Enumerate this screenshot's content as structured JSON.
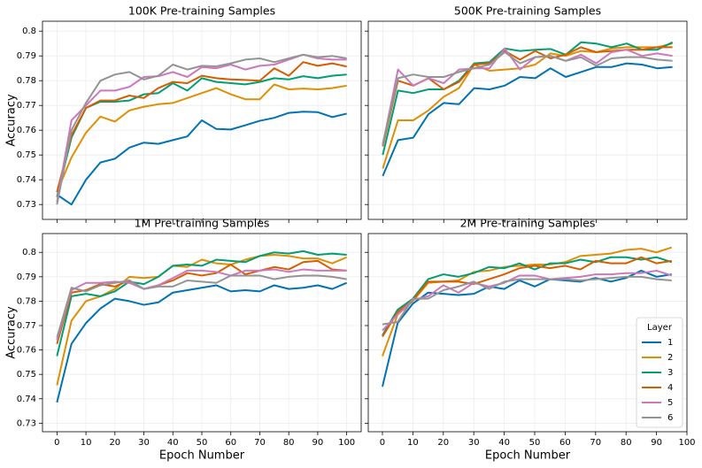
{
  "chart_data": [
    {
      "type": "line",
      "title": "100K Pre-training Samples",
      "y_label": "Accuracy",
      "x": [
        0,
        5,
        10,
        15,
        20,
        25,
        30,
        35,
        40,
        45,
        50,
        55,
        60,
        65,
        70,
        75,
        80,
        85,
        90,
        95,
        100
      ],
      "xlim": [
        -5,
        105
      ],
      "xticks": [
        0,
        10,
        20,
        30,
        40,
        50,
        60,
        70,
        80,
        90,
        100
      ],
      "ylim": [
        0.724,
        0.804
      ],
      "yticks": [
        0.73,
        0.74,
        0.75,
        0.76,
        0.77,
        0.78,
        0.79,
        0.8
      ],
      "grid": true,
      "series": [
        {
          "name": "1",
          "color": "#0173b2",
          "values": [
            0.734,
            0.73,
            0.74,
            0.747,
            0.7485,
            0.753,
            0.755,
            0.7545,
            0.756,
            0.7575,
            0.764,
            0.7605,
            0.7603,
            0.762,
            0.7638,
            0.765,
            0.767,
            0.7675,
            0.7673,
            0.7653,
            0.7667
          ]
        },
        {
          "name": "2",
          "color": "#de8f05",
          "values": [
            0.735,
            0.749,
            0.759,
            0.7655,
            0.7635,
            0.768,
            0.7695,
            0.7705,
            0.771,
            0.773,
            0.775,
            0.777,
            0.7745,
            0.7725,
            0.7725,
            0.7785,
            0.7765,
            0.7768,
            0.7765,
            0.777,
            0.778
          ]
        },
        {
          "name": "3",
          "color": "#029e73",
          "values": [
            0.733,
            0.757,
            0.769,
            0.7715,
            0.7715,
            0.772,
            0.7745,
            0.775,
            0.779,
            0.776,
            0.781,
            0.7795,
            0.779,
            0.7785,
            0.7795,
            0.781,
            0.7805,
            0.7818,
            0.781,
            0.782,
            0.7825
          ]
        },
        {
          "name": "4",
          "color": "#d55e00",
          "values": [
            0.735,
            0.758,
            0.769,
            0.772,
            0.772,
            0.774,
            0.773,
            0.777,
            0.7795,
            0.779,
            0.782,
            0.781,
            0.7805,
            0.7803,
            0.78,
            0.785,
            0.782,
            0.7875,
            0.786,
            0.787,
            0.7857
          ]
        },
        {
          "name": "5",
          "color": "#cc78bc",
          "values": [
            0.731,
            0.764,
            0.77,
            0.776,
            0.776,
            0.7775,
            0.7815,
            0.7818,
            0.7835,
            0.7815,
            0.7855,
            0.785,
            0.7865,
            0.7845,
            0.786,
            0.7865,
            0.7885,
            0.7905,
            0.789,
            0.7885,
            0.7885
          ]
        },
        {
          "name": "6",
          "color": "#949494",
          "values": [
            0.73,
            0.76,
            0.771,
            0.78,
            0.7825,
            0.7835,
            0.7805,
            0.782,
            0.7865,
            0.7845,
            0.786,
            0.7858,
            0.787,
            0.7885,
            0.789,
            0.7875,
            0.789,
            0.7905,
            0.7895,
            0.79,
            0.789
          ]
        }
      ]
    },
    {
      "type": "line",
      "title": "500K Pre-training Samples",
      "x": [
        0,
        5,
        10,
        15,
        20,
        25,
        30,
        35,
        40,
        45,
        50,
        55,
        60,
        65,
        70,
        75,
        80,
        85,
        90,
        95
      ],
      "xlim": [
        -4.75,
        99.75
      ],
      "xticks": [
        0,
        10,
        20,
        30,
        40,
        50,
        60,
        70,
        80,
        90
      ],
      "ylim": [
        0.724,
        0.804
      ],
      "yticks": [
        0.73,
        0.74,
        0.75,
        0.76,
        0.77,
        0.78,
        0.79,
        0.8
      ],
      "grid": true,
      "series": [
        {
          "name": "1",
          "color": "#0173b2",
          "values": [
            0.7415,
            0.756,
            0.757,
            0.7665,
            0.771,
            0.7705,
            0.777,
            0.7765,
            0.778,
            0.7815,
            0.781,
            0.785,
            0.7815,
            0.7835,
            0.7855,
            0.7855,
            0.787,
            0.7865,
            0.785,
            0.7855
          ]
        },
        {
          "name": "2",
          "color": "#de8f05",
          "values": [
            0.7445,
            0.764,
            0.764,
            0.768,
            0.7735,
            0.777,
            0.7865,
            0.784,
            0.7845,
            0.785,
            0.7865,
            0.791,
            0.79,
            0.792,
            0.7915,
            0.793,
            0.7935,
            0.7935,
            0.7935,
            0.795
          ]
        },
        {
          "name": "3",
          "color": "#029e73",
          "values": [
            0.75,
            0.776,
            0.775,
            0.7765,
            0.7765,
            0.78,
            0.787,
            0.7875,
            0.793,
            0.792,
            0.7925,
            0.7928,
            0.7905,
            0.7955,
            0.795,
            0.7935,
            0.795,
            0.7925,
            0.7925,
            0.7955
          ]
        },
        {
          "name": "4",
          "color": "#d55e00",
          "values": [
            0.7535,
            0.78,
            0.778,
            0.781,
            0.7765,
            0.7795,
            0.7865,
            0.787,
            0.792,
            0.7885,
            0.792,
            0.789,
            0.7905,
            0.7935,
            0.7915,
            0.792,
            0.7925,
            0.7925,
            0.7935,
            0.7935
          ]
        },
        {
          "name": "5",
          "color": "#cc78bc",
          "values": [
            0.754,
            0.7845,
            0.778,
            0.781,
            0.779,
            0.7845,
            0.785,
            0.785,
            0.793,
            0.7845,
            0.7895,
            0.79,
            0.788,
            0.7905,
            0.787,
            0.7915,
            0.7925,
            0.79,
            0.791,
            0.79
          ]
        },
        {
          "name": "6",
          "color": "#949494",
          "values": [
            0.7545,
            0.781,
            0.7825,
            0.7815,
            0.7815,
            0.7835,
            0.785,
            0.7865,
            0.7915,
            0.787,
            0.7895,
            0.79,
            0.788,
            0.7895,
            0.786,
            0.789,
            0.7895,
            0.7895,
            0.7885,
            0.788
          ]
        }
      ]
    },
    {
      "type": "line",
      "title": "1M Pre-training Samples",
      "y_label": "Accuracy",
      "x_label": "Epoch Number",
      "x": [
        0,
        5,
        10,
        15,
        20,
        25,
        30,
        35,
        40,
        45,
        50,
        55,
        60,
        65,
        70,
        75,
        80,
        85,
        90,
        95,
        100
      ],
      "xlim": [
        -5,
        105
      ],
      "xticks": [
        0,
        10,
        20,
        30,
        40,
        50,
        60,
        70,
        80,
        90,
        100
      ],
      "ylim": [
        0.7265,
        0.8077
      ],
      "yticks": [
        0.73,
        0.74,
        0.75,
        0.76,
        0.77,
        0.78,
        0.79,
        0.8
      ],
      "grid": true,
      "series": [
        {
          "name": "1",
          "color": "#0173b2",
          "values": [
            0.7385,
            0.7625,
            0.771,
            0.777,
            0.781,
            0.78,
            0.7785,
            0.7795,
            0.7835,
            0.7845,
            0.7855,
            0.7865,
            0.784,
            0.7845,
            0.784,
            0.7865,
            0.785,
            0.7855,
            0.7865,
            0.785,
            0.7875
          ]
        },
        {
          "name": "2",
          "color": "#de8f05",
          "values": [
            0.7455,
            0.772,
            0.78,
            0.782,
            0.785,
            0.79,
            0.7895,
            0.79,
            0.7945,
            0.794,
            0.797,
            0.7955,
            0.795,
            0.797,
            0.7985,
            0.799,
            0.7985,
            0.7975,
            0.7975,
            0.7955,
            0.798
          ]
        },
        {
          "name": "3",
          "color": "#029e73",
          "values": [
            0.7575,
            0.782,
            0.783,
            0.782,
            0.784,
            0.788,
            0.787,
            0.79,
            0.7945,
            0.795,
            0.7945,
            0.797,
            0.7965,
            0.796,
            0.7985,
            0.8,
            0.7995,
            0.8005,
            0.799,
            0.7995,
            0.799
          ]
        },
        {
          "name": "4",
          "color": "#d55e00",
          "values": [
            0.7625,
            0.7835,
            0.7845,
            0.787,
            0.786,
            0.7885,
            0.785,
            0.7865,
            0.7885,
            0.7915,
            0.7905,
            0.7915,
            0.795,
            0.791,
            0.7925,
            0.794,
            0.793,
            0.796,
            0.7965,
            0.793,
            0.7925
          ]
        },
        {
          "name": "5",
          "color": "#cc78bc",
          "values": [
            0.764,
            0.7845,
            0.7875,
            0.7875,
            0.788,
            0.7875,
            0.785,
            0.7865,
            0.7895,
            0.7925,
            0.7925,
            0.792,
            0.7905,
            0.7925,
            0.7925,
            0.793,
            0.792,
            0.793,
            0.7925,
            0.7925,
            0.7925
          ]
        },
        {
          "name": "6",
          "color": "#949494",
          "values": [
            0.765,
            0.7855,
            0.784,
            0.7865,
            0.7875,
            0.7885,
            0.785,
            0.786,
            0.786,
            0.7885,
            0.788,
            0.7875,
            0.7905,
            0.7905,
            0.7905,
            0.789,
            0.79,
            0.7905,
            0.7905,
            0.79,
            0.789
          ]
        }
      ]
    },
    {
      "type": "line",
      "title": "2M Pre-training Samples",
      "x_label": "Epoch Number",
      "x": [
        0,
        5,
        10,
        15,
        20,
        25,
        30,
        35,
        40,
        45,
        50,
        55,
        60,
        65,
        70,
        75,
        80,
        85,
        90,
        95
      ],
      "xlim": [
        -4.65,
        100
      ],
      "xticks": [
        0,
        10,
        20,
        30,
        40,
        50,
        60,
        70,
        80,
        90,
        100
      ],
      "ylim": [
        0.7265,
        0.8077
      ],
      "yticks": [
        0.73,
        0.74,
        0.75,
        0.76,
        0.77,
        0.78,
        0.79,
        0.8
      ],
      "grid": true,
      "legend_title": "Layer",
      "legend": "lower right",
      "series": [
        {
          "name": "1",
          "color": "#0173b2",
          "values": [
            0.745,
            0.771,
            0.779,
            0.7835,
            0.783,
            0.7825,
            0.783,
            0.786,
            0.785,
            0.7885,
            0.786,
            0.789,
            0.7885,
            0.788,
            0.7895,
            0.788,
            0.7895,
            0.7925,
            0.79,
            0.791
          ]
        },
        {
          "name": "2",
          "color": "#de8f05",
          "values": [
            0.7575,
            0.7745,
            0.78,
            0.7875,
            0.788,
            0.7885,
            0.792,
            0.7925,
            0.794,
            0.7945,
            0.795,
            0.795,
            0.796,
            0.7985,
            0.799,
            0.7995,
            0.801,
            0.8015,
            0.8,
            0.802
          ]
        },
        {
          "name": "3",
          "color": "#029e73",
          "values": [
            0.766,
            0.7765,
            0.781,
            0.789,
            0.791,
            0.79,
            0.7915,
            0.794,
            0.7935,
            0.7955,
            0.793,
            0.7955,
            0.7955,
            0.797,
            0.796,
            0.798,
            0.798,
            0.797,
            0.798,
            0.796
          ]
        },
        {
          "name": "4",
          "color": "#d55e00",
          "values": [
            0.7655,
            0.7755,
            0.7805,
            0.788,
            0.788,
            0.788,
            0.787,
            0.789,
            0.791,
            0.7935,
            0.7945,
            0.7935,
            0.7945,
            0.793,
            0.7965,
            0.7955,
            0.7955,
            0.798,
            0.7955,
            0.7965
          ]
        },
        {
          "name": "5",
          "color": "#cc78bc",
          "values": [
            0.768,
            0.7745,
            0.7805,
            0.782,
            0.7865,
            0.7835,
            0.7875,
            0.786,
            0.7875,
            0.7905,
            0.7905,
            0.789,
            0.7895,
            0.79,
            0.791,
            0.791,
            0.7915,
            0.7915,
            0.7925,
            0.7905
          ]
        },
        {
          "name": "6",
          "color": "#949494",
          "values": [
            0.7705,
            0.7715,
            0.781,
            0.781,
            0.7845,
            0.786,
            0.788,
            0.785,
            0.788,
            0.789,
            0.789,
            0.789,
            0.789,
            0.7885,
            0.789,
            0.7895,
            0.79,
            0.79,
            0.789,
            0.7885
          ]
        }
      ]
    }
  ]
}
